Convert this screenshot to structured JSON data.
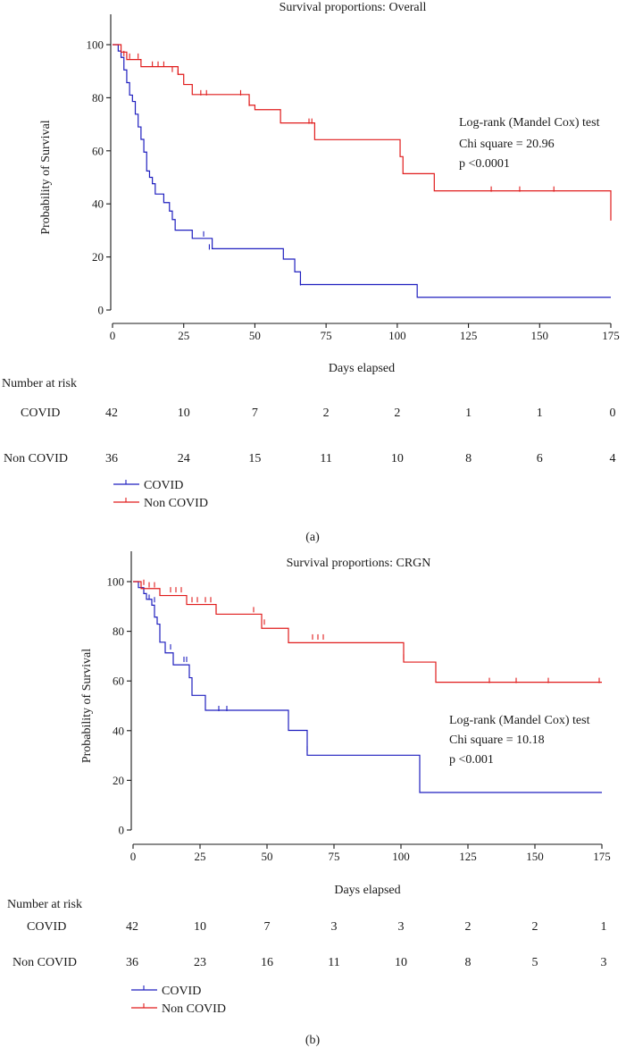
{
  "chart_data": [
    {
      "type": "line",
      "panel_label": "(a)",
      "title": "Survival proportions: Overall",
      "xlabel": "Days elapsed",
      "ylabel": "Probability of Survival",
      "xlim": [
        0,
        175
      ],
      "ylim": [
        0,
        100
      ],
      "xticks": [
        0,
        25,
        50,
        75,
        100,
        125,
        150,
        175
      ],
      "yticks": [
        0,
        20,
        40,
        60,
        80,
        100
      ],
      "annotation": [
        "Log-rank (Mandel Cox) test",
        "Chi square = 20.96",
        "p <0.0001"
      ],
      "series": [
        {
          "name": "COVID",
          "color": "#1f1fbf",
          "steps": [
            [
              0,
              100
            ],
            [
              2,
              97.6
            ],
            [
              3,
              95.2
            ],
            [
              4,
              90.5
            ],
            [
              5,
              85.7
            ],
            [
              6,
              81
            ],
            [
              7,
              78.6
            ],
            [
              8,
              73.8
            ],
            [
              9,
              69
            ],
            [
              10,
              64.3
            ],
            [
              11,
              59.5
            ],
            [
              12,
              52.4
            ],
            [
              13,
              50
            ],
            [
              14,
              47.6
            ],
            [
              15,
              43.7
            ],
            [
              18,
              40.5
            ],
            [
              20,
              37.3
            ],
            [
              21,
              34.1
            ],
            [
              22,
              30.1
            ],
            [
              28,
              27
            ],
            [
              35,
              23.1
            ],
            [
              60,
              19.2
            ],
            [
              64,
              14.4
            ],
            [
              66,
              9.6
            ],
            [
              107,
              4.8
            ],
            [
              175,
              4.8
            ]
          ],
          "censored": [
            [
              32,
              28
            ],
            [
              34,
              23.1
            ],
            [
              66,
              9.6
            ]
          ]
        },
        {
          "name": "Non COVID",
          "color": "#e01b1b",
          "steps": [
            [
              0,
              100
            ],
            [
              3,
              97.2
            ],
            [
              5,
              94.4
            ],
            [
              10,
              91.7
            ],
            [
              23,
              88.8
            ],
            [
              25,
              85
            ],
            [
              28,
              81.2
            ],
            [
              48,
              77.2
            ],
            [
              50,
              75.5
            ],
            [
              59,
              70.5
            ],
            [
              71,
              64.2
            ],
            [
              101,
              57.8
            ],
            [
              102,
              51.4
            ],
            [
              113,
              44.9
            ],
            [
              174,
              44.9
            ],
            [
              175,
              33.7
            ]
          ],
          "censored": [
            [
              4,
              96
            ],
            [
              6,
              95
            ],
            [
              9,
              95
            ],
            [
              14,
              92
            ],
            [
              16,
              92
            ],
            [
              18,
              92
            ],
            [
              21,
              90
            ],
            [
              23,
              89
            ],
            [
              31,
              81.2
            ],
            [
              33,
              81.2
            ],
            [
              45,
              81.2
            ],
            [
              48,
              77.2
            ],
            [
              69,
              70.5
            ],
            [
              70,
              70.5
            ],
            [
              133,
              44.9
            ],
            [
              143,
              44.9
            ],
            [
              155,
              44.9
            ]
          ]
        }
      ],
      "risk_table": {
        "header": "Number at risk",
        "times": [
          0,
          25,
          50,
          75,
          100,
          125,
          150,
          175
        ],
        "rows": [
          {
            "label": "COVID",
            "counts": [
              "42",
              "10",
              "7",
              "2",
              "2",
              "1",
              "1",
              "0"
            ]
          },
          {
            "label": "Non COVID",
            "counts": [
              "36",
              "24",
              "15",
              "11",
              "10",
              "8",
              "6",
              "4"
            ]
          }
        ]
      },
      "legend": [
        "COVID",
        "Non COVID"
      ]
    },
    {
      "type": "line",
      "panel_label": "(b)",
      "title": "Survival proportions: CRGN",
      "xlabel": "Days elapsed",
      "ylabel": "Probability of Survival",
      "xlim": [
        0,
        175
      ],
      "ylim": [
        0,
        100
      ],
      "xticks": [
        0,
        25,
        50,
        75,
        100,
        125,
        150,
        175
      ],
      "yticks": [
        0,
        20,
        40,
        60,
        80,
        100
      ],
      "annotation": [
        "Log-rank (Mandel Cox) test",
        "Chi square = 10.18",
        "p <0.001"
      ],
      "series": [
        {
          "name": "COVID",
          "color": "#1f1fbf",
          "steps": [
            [
              0,
              100
            ],
            [
              2,
              97.6
            ],
            [
              4,
              95.2
            ],
            [
              5,
              92.9
            ],
            [
              7,
              90.5
            ],
            [
              8,
              85.7
            ],
            [
              9,
              82.9
            ],
            [
              10,
              75.6
            ],
            [
              12,
              71.3
            ],
            [
              15,
              66.5
            ],
            [
              21,
              61.3
            ],
            [
              22,
              54.2
            ],
            [
              27,
              48.2
            ],
            [
              58,
              40.1
            ],
            [
              65,
              30.1
            ],
            [
              107,
              15.1
            ],
            [
              175,
              15.1
            ]
          ],
          "censored": [
            [
              6,
              93
            ],
            [
              8,
              92
            ],
            [
              14,
              73
            ],
            [
              19,
              68
            ],
            [
              20,
              68
            ],
            [
              32,
              48.2
            ],
            [
              35,
              48.2
            ],
            [
              65,
              32
            ]
          ]
        },
        {
          "name": "Non COVID",
          "color": "#e01b1b",
          "steps": [
            [
              0,
              100
            ],
            [
              3,
              97.2
            ],
            [
              10,
              94.4
            ],
            [
              20,
              90.8
            ],
            [
              31,
              86.9
            ],
            [
              48,
              81.2
            ],
            [
              58,
              75.4
            ],
            [
              101,
              67.6
            ],
            [
              113,
              59.5
            ],
            [
              175,
              59.5
            ]
          ],
          "censored": [
            [
              4,
              99
            ],
            [
              6,
              98
            ],
            [
              8,
              98
            ],
            [
              14,
              96
            ],
            [
              16,
              96
            ],
            [
              18,
              96
            ],
            [
              22,
              92
            ],
            [
              24,
              92
            ],
            [
              27,
              92
            ],
            [
              29,
              92
            ],
            [
              31,
              88
            ],
            [
              45,
              88
            ],
            [
              49,
              83
            ],
            [
              67,
              77
            ],
            [
              69,
              77
            ],
            [
              71,
              77
            ],
            [
              101,
              69
            ],
            [
              133,
              59.5
            ],
            [
              143,
              59.5
            ],
            [
              155,
              59.5
            ],
            [
              174,
              59.5
            ]
          ]
        }
      ],
      "risk_table": {
        "header": "Number at risk",
        "times": [
          0,
          25,
          50,
          75,
          100,
          125,
          150,
          175
        ],
        "rows": [
          {
            "label": "COVID",
            "counts": [
              "42",
              "10",
              "7",
              "3",
              "3",
              "2",
              "2",
              "1"
            ]
          },
          {
            "label": "Non COVID",
            "counts": [
              "36",
              "23",
              "16",
              "11",
              "10",
              "8",
              "5",
              "3"
            ]
          }
        ]
      },
      "legend": [
        "COVID",
        "Non COVID"
      ]
    }
  ]
}
